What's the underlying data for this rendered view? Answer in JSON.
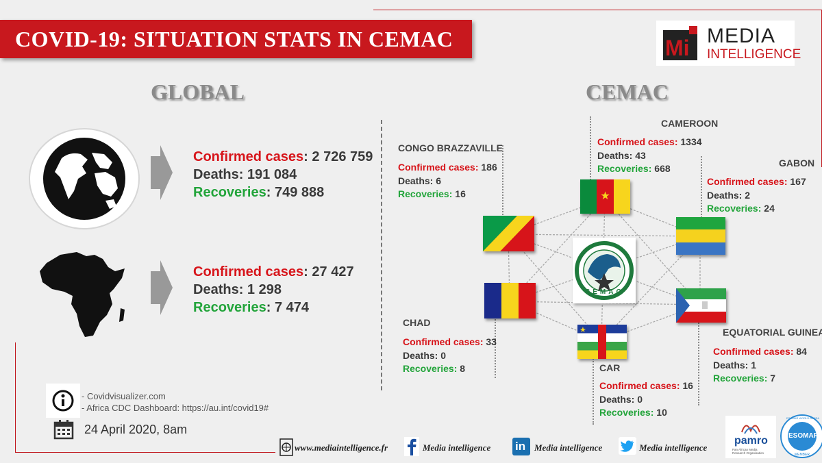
{
  "header": {
    "title": "COVID-19:  SITUATION STATS IN CEMAC"
  },
  "logo": {
    "mark": "Mi",
    "line1": "MEDIA",
    "line2": "INTELLIGENCE"
  },
  "global": {
    "heading": "GLOBAL",
    "world": {
      "confirmed_label": "Confirmed cases",
      "confirmed_value": ": 2 726 759",
      "deaths_label": "Deaths:",
      "deaths_value": " 191 084",
      "recoveries_label": "Recoveries",
      "recoveries_value": ": 749 888"
    },
    "africa": {
      "confirmed_label": "Confirmed cases",
      "confirmed_value": ":  27 427",
      "deaths_label": "Deaths:",
      "deaths_value": " 1 298",
      "recoveries_label": "Recoveries",
      "recoveries_value": ": 7 474"
    }
  },
  "cemac": {
    "heading": "CEMAC",
    "emblem_text": "CEMAC",
    "countries": {
      "cameroon": {
        "name": "CAMEROON",
        "confirmed_label": "Confirmed cases:",
        "confirmed_value": " 1334",
        "deaths_label": "Deaths:",
        "deaths_value": " 43",
        "recoveries_label": "Recoveries:",
        "recoveries_value": " 668"
      },
      "congo": {
        "name": "CONGO BRAZZAVILLE",
        "confirmed_label": "Confirmed cases:",
        "confirmed_value": " 186",
        "deaths_label": "Deaths:",
        "deaths_value": " 6",
        "recoveries_label": "Recoveries:",
        "recoveries_value": " 16"
      },
      "gabon": {
        "name": "GABON",
        "confirmed_label": "Confirmed cases:",
        "confirmed_value": " 167",
        "deaths_label": "Deaths:",
        "deaths_value": " 2",
        "recoveries_label": "Recoveries:",
        "recoveries_value": " 24"
      },
      "chad": {
        "name": "CHAD",
        "confirmed_label": "Confirmed cases:",
        "confirmed_value": " 33",
        "deaths_label": "Deaths:",
        "deaths_value": " 0",
        "recoveries_label": "Recoveries:",
        "recoveries_value": " 8"
      },
      "eq_guinea": {
        "name": "EQUATORIAL GUINEA",
        "confirmed_label": "Confirmed cases:",
        "confirmed_value": " 84",
        "deaths_label": "Deaths:",
        "deaths_value": " 1",
        "recoveries_label": "Recoveries:",
        "recoveries_value": " 7"
      },
      "car": {
        "name": "CAR",
        "confirmed_label": "Confirmed cases:",
        "confirmed_value": " 16",
        "deaths_label": "Deaths:",
        "deaths_value": " 0",
        "recoveries_label": "Recoveries:",
        "recoveries_value": " 10"
      }
    }
  },
  "sources": {
    "line1": "- Covidvisualizer.com",
    "line2": "- Africa CDC Dashboard: https://au.int/covid19#"
  },
  "date": "24 April 2020, 8am",
  "footer": {
    "website": "www.mediaintelligence.fr",
    "facebook": "Media intelligence",
    "linkedin": "Media intelligence",
    "twitter": "Media intelligence",
    "pamro": "pamro",
    "pamro_sub": "Pan African Media Research Organisation",
    "esomar": "ESOMAR",
    "esomar_ring": "ESOMAR WORLD RESEARCH",
    "esomar_member": "MEMBER"
  },
  "colors": {
    "brand_red": "#c8181e",
    "confirmed": "#d7141a",
    "recoveries": "#22a43a"
  },
  "icons": [
    "globe-icon",
    "africa-map-icon",
    "arrow-icon",
    "info-icon",
    "calendar-icon",
    "web-icon",
    "facebook-icon",
    "linkedin-icon",
    "twitter-icon"
  ]
}
